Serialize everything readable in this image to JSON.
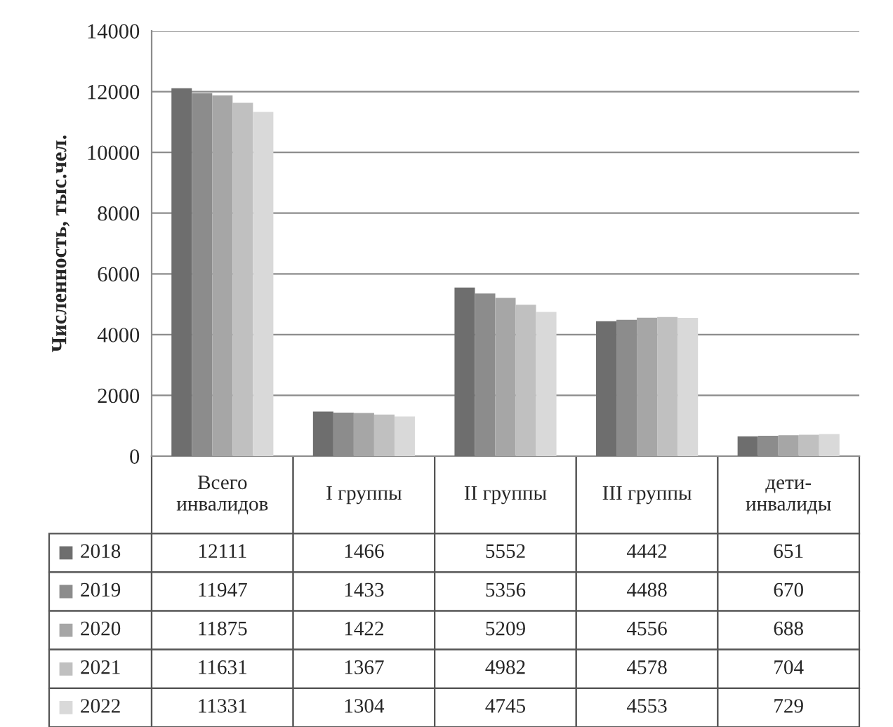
{
  "chart_data": {
    "type": "bar",
    "ylabel": "Численность, тыс.чел.",
    "categories": [
      "Всего\nинвалидов",
      "I группы",
      "II группы",
      "III группы",
      "дети-\nинвалиды"
    ],
    "series": [
      {
        "name": "2018",
        "color": "#6e6e6e",
        "values": [
          12111,
          1466,
          5552,
          4442,
          651
        ]
      },
      {
        "name": "2019",
        "color": "#8c8c8c",
        "values": [
          11947,
          1433,
          5356,
          4488,
          670
        ]
      },
      {
        "name": "2020",
        "color": "#a6a6a6",
        "values": [
          11875,
          1422,
          5209,
          4556,
          688
        ]
      },
      {
        "name": "2021",
        "color": "#c0c0c0",
        "values": [
          11631,
          1367,
          4982,
          4578,
          704
        ]
      },
      {
        "name": "2022",
        "color": "#d9d9d9",
        "values": [
          11331,
          1304,
          4745,
          4553,
          729
        ]
      }
    ],
    "ylim": [
      0,
      14000
    ],
    "yticks": [
      0,
      2000,
      4000,
      6000,
      8000,
      10000,
      12000,
      14000
    ],
    "grid": "y",
    "data_labels": true,
    "legend": "bottom",
    "tick_labels": "y"
  }
}
